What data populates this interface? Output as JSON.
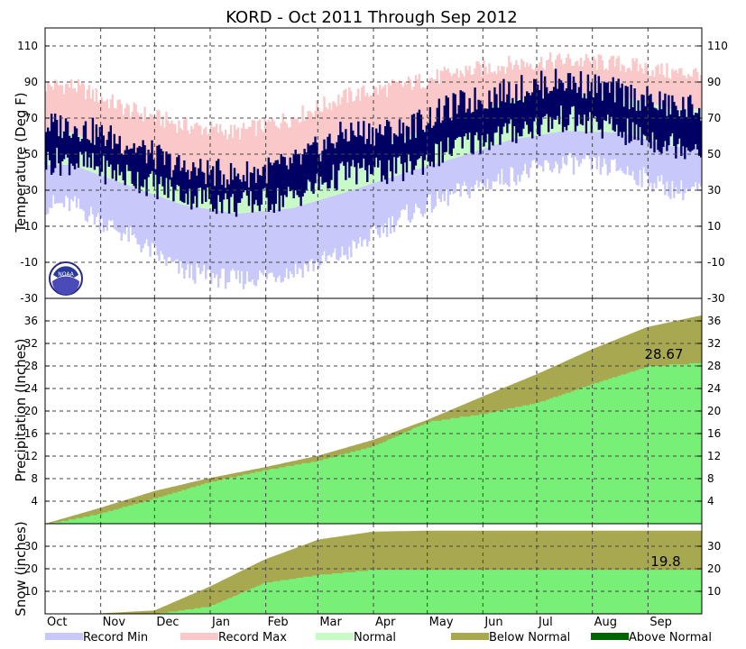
{
  "chart_data": {
    "type": "multi-panel climate summary",
    "title": "KORD - Oct 2011 Through Sep 2012",
    "months": [
      "Oct",
      "Nov",
      "Dec",
      "Jan",
      "Feb",
      "Mar",
      "Apr",
      "May",
      "Jun",
      "Jul",
      "Aug",
      "Sep"
    ],
    "colors": {
      "record_min": "#c8c8fa",
      "record_max": "#fac8c8",
      "normal": "#c8fac8",
      "observed_temp": "#000064",
      "observed_accum": "#78f078",
      "below_normal": "#a8a850",
      "above_normal": "#006400"
    },
    "legend": [
      {
        "key": "record_min",
        "label": "Record Min"
      },
      {
        "key": "record_max",
        "label": "Record Max"
      },
      {
        "key": "normal",
        "label": "Normal"
      },
      {
        "key": "below_normal",
        "label": "Below Normal"
      },
      {
        "key": "above_normal",
        "label": "Above Normal"
      }
    ],
    "panels": {
      "temperature": {
        "ylabel": "Temperature (Deg F)",
        "ylim": [
          -30,
          120
        ],
        "ticks": [
          -30,
          -10,
          10,
          30,
          50,
          70,
          90,
          110
        ],
        "monthly": {
          "record_max_high": [
            88,
            75,
            66,
            62,
            70,
            82,
            88,
            95,
            100,
            102,
            100,
            95
          ],
          "normal_high": [
            62,
            48,
            36,
            31,
            35,
            46,
            59,
            70,
            80,
            84,
            82,
            75
          ],
          "normal_low": [
            44,
            33,
            22,
            17,
            20,
            29,
            39,
            48,
            58,
            63,
            62,
            54
          ],
          "record_min_low": [
            22,
            5,
            -15,
            -20,
            -15,
            -5,
            15,
            28,
            38,
            45,
            42,
            30
          ],
          "observed_high": [
            66,
            56,
            42,
            38,
            44,
            62,
            63,
            77,
            85,
            91,
            84,
            76
          ],
          "observed_low": [
            46,
            38,
            28,
            22,
            26,
            40,
            41,
            54,
            62,
            70,
            63,
            55
          ]
        }
      },
      "precipitation": {
        "ylabel": "Precipitation (Inches)",
        "ylim": [
          0,
          40
        ],
        "ticks": [
          4,
          8,
          12,
          16,
          20,
          24,
          28,
          32,
          36
        ],
        "normal_cumulative": [
          0,
          2.8,
          5.8,
          8.1,
          10.0,
          12.1,
          14.9,
          18.5,
          22.6,
          26.6,
          31.0,
          34.9,
          37.0
        ],
        "observed_cumulative": [
          0,
          1.9,
          4.6,
          7.5,
          9.6,
          11.3,
          13.9,
          18.2,
          19.6,
          21.6,
          24.9,
          28.0,
          28.67
        ],
        "annotation": "28.67"
      },
      "snow": {
        "ylabel": "Snow (inches)",
        "ylim": [
          0,
          40
        ],
        "ticks": [
          10,
          20,
          30
        ],
        "normal_cumulative": [
          0,
          0.2,
          1.5,
          12.0,
          24.0,
          33.0,
          36.5,
          36.9,
          36.9,
          36.9,
          36.9,
          36.9,
          36.9
        ],
        "observed_cumulative": [
          0,
          0,
          0.2,
          3.5,
          14.0,
          17.5,
          19.8,
          19.8,
          19.8,
          19.8,
          19.8,
          19.8,
          19.8
        ],
        "annotation": "19.8"
      }
    }
  }
}
